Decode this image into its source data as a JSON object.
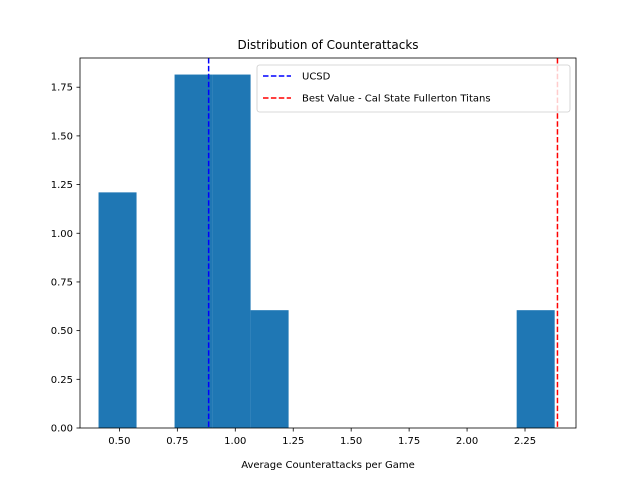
{
  "chart_data": {
    "type": "bar",
    "title": "Distribution of Counterattacks",
    "xlabel": "Average Counterattacks per Game",
    "ylabel": "",
    "xlim": [
      0.33,
      2.47
    ],
    "ylim": [
      0,
      1.9
    ],
    "grid": false,
    "legend_placement": "top-right",
    "xticks": [
      "0.50",
      "0.75",
      "1.00",
      "1.25",
      "1.50",
      "1.75",
      "2.00",
      "2.25"
    ],
    "xtick_values": [
      0.5,
      0.75,
      1.0,
      1.25,
      1.5,
      1.75,
      2.0,
      2.25
    ],
    "yticks": [
      "0.00",
      "0.25",
      "0.50",
      "0.75",
      "1.00",
      "1.25",
      "1.50",
      "1.75"
    ],
    "ytick_values": [
      0,
      0.25,
      0.5,
      0.75,
      1.0,
      1.25,
      1.5,
      1.75
    ],
    "bins": [
      {
        "x0": 0.41,
        "x1": 0.574,
        "value": 1.21
      },
      {
        "x0": 0.574,
        "x1": 0.738,
        "value": 0.0
      },
      {
        "x0": 0.738,
        "x1": 0.902,
        "value": 1.815
      },
      {
        "x0": 0.902,
        "x1": 1.066,
        "value": 1.815
      },
      {
        "x0": 1.066,
        "x1": 1.23,
        "value": 0.605
      },
      {
        "x0": 1.23,
        "x1": 1.394,
        "value": 0.0
      },
      {
        "x0": 1.394,
        "x1": 1.558,
        "value": 0.0
      },
      {
        "x0": 1.558,
        "x1": 1.722,
        "value": 0.0
      },
      {
        "x0": 1.722,
        "x1": 1.886,
        "value": 0.0
      },
      {
        "x0": 1.886,
        "x1": 2.05,
        "value": 0.0
      },
      {
        "x0": 2.05,
        "x1": 2.214,
        "value": 0.0
      },
      {
        "x0": 2.214,
        "x1": 2.378,
        "value": 0.605
      }
    ],
    "bar_color": "#1f77b4",
    "reference_lines": [
      {
        "name": "UCSD",
        "x": 0.885,
        "color": "#0000ff",
        "style": "dashed"
      },
      {
        "name": "Best Value - Cal State Fullerton Titans",
        "x": 2.39,
        "color": "#ff0000",
        "style": "dashed"
      }
    ]
  }
}
